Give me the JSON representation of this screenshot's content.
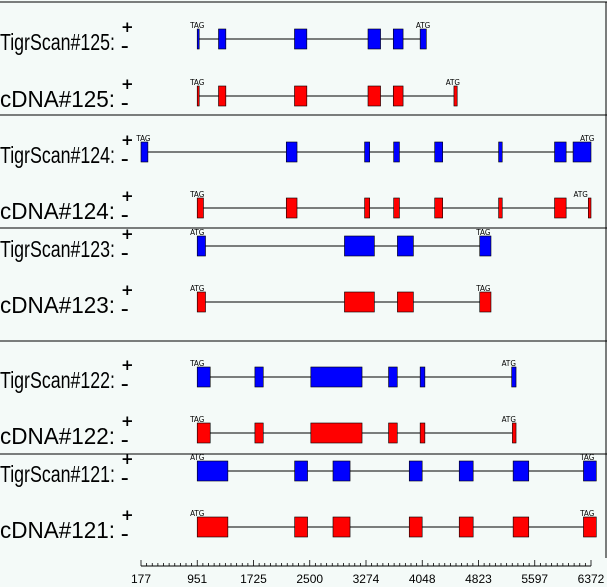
{
  "strand_symbols": {
    "plus": "+",
    "minus": "–"
  },
  "colors": {
    "background": "#f4faf8",
    "tigrscan": "#0000ff",
    "cdna": "#ff0000",
    "exon_border": "#000000",
    "separator": "#000000"
  },
  "axis": {
    "min": 177,
    "max": 6372,
    "ticks": [
      177,
      951,
      1725,
      2500,
      3274,
      4048,
      4823,
      5597,
      6372
    ]
  },
  "genes": [
    {
      "id": "125",
      "tracks": [
        {
          "label": "TigrScan#125:",
          "kind": "tigrscan",
          "exons": [
            [
              951,
              975
            ],
            [
              1244,
              1345
            ],
            [
              2290,
              2460
            ],
            [
              3302,
              3475
            ],
            [
              3650,
              3785
            ],
            [
              4020,
              4105
            ]
          ],
          "markers": [
            {
              "text": "TAG",
              "pos": 951
            },
            {
              "text": "ATG",
              "pos": 4060
            }
          ]
        },
        {
          "label": "cDNA#125:",
          "kind": "cdna",
          "exons": [
            [
              951,
              975
            ],
            [
              1244,
              1345
            ],
            [
              2290,
              2460
            ],
            [
              3302,
              3475
            ],
            [
              3650,
              3785
            ],
            [
              4485,
              4530
            ]
          ],
          "markers": [
            {
              "text": "TAG",
              "pos": 951
            },
            {
              "text": "ATG",
              "pos": 4470
            }
          ]
        }
      ]
    },
    {
      "id": "124",
      "tracks": [
        {
          "label": "TigrScan#124:",
          "kind": "tigrscan",
          "exons": [
            [
              177,
              272
            ],
            [
              2177,
              2325
            ],
            [
              3255,
              3325
            ],
            [
              3655,
              3735
            ],
            [
              4220,
              4330
            ],
            [
              5100,
              5150
            ],
            [
              5870,
              6030
            ],
            [
              6125,
              6372
            ]
          ],
          "markers": [
            {
              "text": "TAG",
              "pos": 210
            },
            {
              "text": "ATG",
              "pos": 6320
            }
          ]
        },
        {
          "label": "cDNA#124:",
          "kind": "cdna",
          "exons": [
            [
              951,
              1037
            ],
            [
              2177,
              2325
            ],
            [
              3255,
              3325
            ],
            [
              3655,
              3735
            ],
            [
              4220,
              4330
            ],
            [
              5100,
              5150
            ],
            [
              5870,
              6030
            ],
            [
              6335,
              6372
            ]
          ],
          "markers": [
            {
              "text": "TAG",
              "pos": 951
            },
            {
              "text": "ATG",
              "pos": 6230
            }
          ]
        }
      ]
    },
    {
      "id": "123",
      "tracks": [
        {
          "label": "TigrScan#123:",
          "kind": "tigrscan",
          "exons": [
            [
              951,
              1065
            ],
            [
              2978,
              3390
            ],
            [
              3707,
              3927
            ],
            [
              4840,
              4995
            ]
          ],
          "markers": [
            {
              "text": "ATG",
              "pos": 951
            },
            {
              "text": "TAG",
              "pos": 4890
            }
          ]
        },
        {
          "label": "cDNA#123:",
          "kind": "cdna",
          "exons": [
            [
              951,
              1065
            ],
            [
              2978,
              3390
            ],
            [
              3707,
              3927
            ],
            [
              4840,
              4995
            ]
          ],
          "markers": [
            {
              "text": "ATG",
              "pos": 951
            },
            {
              "text": "TAG",
              "pos": 4890
            }
          ]
        }
      ]
    },
    {
      "id": "122",
      "tracks": [
        {
          "label": "TigrScan#122:",
          "kind": "tigrscan",
          "exons": [
            [
              951,
              1130
            ],
            [
              1745,
              1860
            ],
            [
              2515,
              3220
            ],
            [
              3585,
              3705
            ],
            [
              4020,
              4085
            ],
            [
              5280,
              5340
            ]
          ],
          "markers": [
            {
              "text": "TAG",
              "pos": 951
            },
            {
              "text": "ATG",
              "pos": 5240
            }
          ]
        },
        {
          "label": "cDNA#122:",
          "kind": "cdna",
          "exons": [
            [
              951,
              1130
            ],
            [
              1745,
              1860
            ],
            [
              2515,
              3220
            ],
            [
              3585,
              3705
            ],
            [
              4020,
              4085
            ],
            [
              5290,
              5340
            ]
          ],
          "markers": [
            {
              "text": "TAG",
              "pos": 951
            },
            {
              "text": "ATG",
              "pos": 5240
            }
          ]
        }
      ]
    },
    {
      "id": "121",
      "tracks": [
        {
          "label": "TigrScan#121:",
          "kind": "tigrscan",
          "exons": [
            [
              951,
              1373
            ],
            [
              2292,
              2470
            ],
            [
              2820,
              3055
            ],
            [
              3870,
              4048
            ],
            [
              4558,
              4750
            ],
            [
              5300,
              5515
            ],
            [
              6268,
              6445
            ]
          ],
          "markers": [
            {
              "text": "ATG",
              "pos": 951
            },
            {
              "text": "TAG",
              "pos": 6320
            }
          ]
        },
        {
          "label": "cDNA#121:",
          "kind": "cdna",
          "exons": [
            [
              951,
              1373
            ],
            [
              2292,
              2470
            ],
            [
              2820,
              3055
            ],
            [
              3870,
              4048
            ],
            [
              4558,
              4750
            ],
            [
              5300,
              5515
            ],
            [
              6268,
              6445
            ]
          ],
          "markers": [
            {
              "text": "ATG",
              "pos": 951
            },
            {
              "text": "TAG",
              "pos": 6320
            }
          ]
        }
      ]
    }
  ]
}
